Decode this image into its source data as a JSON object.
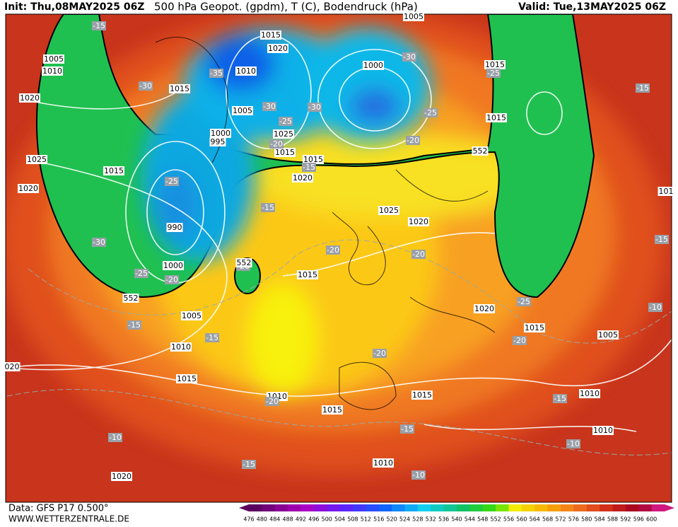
{
  "header": {
    "init": "Init: Thu,08MAY2025 06Z",
    "title": "500 hPa Geopot. (gpdm), T (C), Bodendruck (hPa)",
    "valid": "Valid: Tue,13MAY2025 06Z"
  },
  "footer": {
    "source": "Data: GFS P17 0.500°",
    "site": "WWW.WETTERZENTRALE.DE"
  },
  "colorbar": {
    "labels": [
      476,
      480,
      484,
      488,
      492,
      496,
      500,
      504,
      508,
      512,
      516,
      520,
      524,
      528,
      532,
      536,
      540,
      544,
      548,
      552,
      556,
      560,
      564,
      568,
      572,
      576,
      580,
      584,
      588,
      592,
      596,
      600
    ]
  },
  "map": {
    "pressure_labels": [
      "1005",
      "1010",
      "1020",
      "1025",
      "1020",
      "1015",
      "1015",
      "1010",
      "1015",
      "1020",
      "1005",
      "1000",
      "1015",
      "1015",
      "1005",
      "1000",
      "995",
      "1025",
      "1015",
      "1015",
      "1020",
      "1025",
      "1020",
      "990",
      "1000",
      "1015",
      "1005",
      "1010",
      "1015",
      "1010",
      "1015",
      "1015",
      "1020",
      "1015",
      "1005",
      "1010",
      "1010",
      "1010",
      "1020",
      "020",
      "101"
    ],
    "temperature_labels": [
      "-15",
      "-30",
      "-35",
      "-30",
      "-25",
      "-20",
      "-30",
      "-30",
      "-25",
      "-20",
      "-25",
      "-15",
      "-25",
      "-15",
      "-15",
      "-30",
      "-25",
      "-20",
      "-20",
      "-20",
      "-20",
      "-25",
      "-15",
      "-15",
      "-20",
      "-20",
      "-10",
      "-15",
      "-20",
      "-15",
      "-15",
      "-10",
      "-10",
      "-15",
      "-10"
    ],
    "geopotential_labels": [
      "552",
      "552",
      "552"
    ]
  }
}
